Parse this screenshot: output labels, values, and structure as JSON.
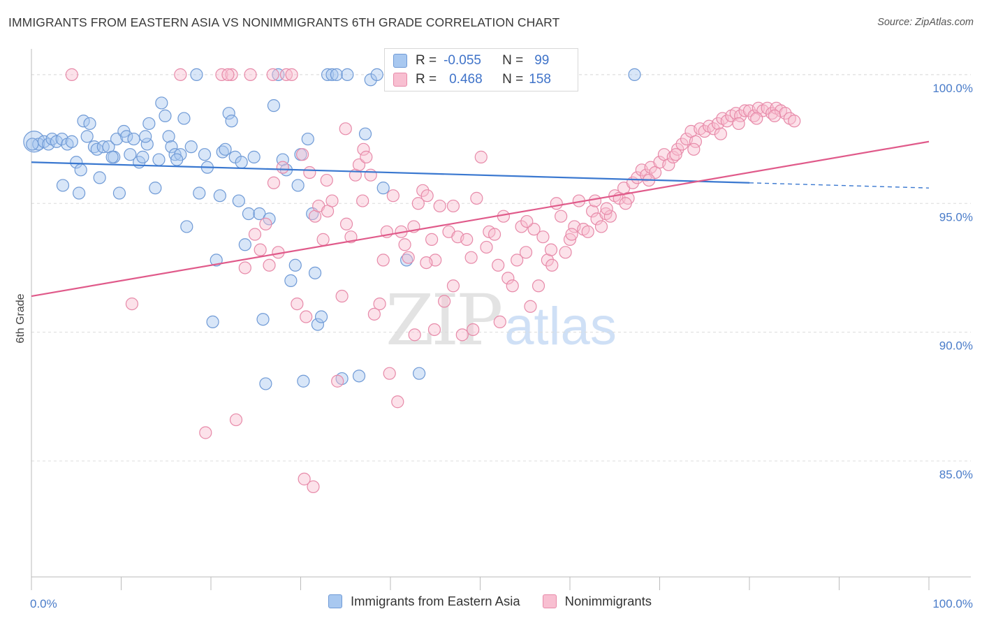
{
  "header": {
    "title": "IMMIGRANTS FROM EASTERN ASIA VS NONIMMIGRANTS 6TH GRADE CORRELATION CHART",
    "source": "Source: ZipAtlas.com"
  },
  "watermark": {
    "part1": "ZIP",
    "part2": "atlas"
  },
  "legend": {
    "rows": [
      {
        "r_label": "R =",
        "r_value": "-0.055",
        "n_label": "N =",
        "n_value": "99",
        "color": "#a8c8f0",
        "border": "#6f9ad6"
      },
      {
        "r_label": "R =",
        "r_value": "0.468",
        "n_label": "N =",
        "n_value": "158",
        "color": "#f8bfd1",
        "border": "#e78aa9"
      }
    ]
  },
  "bottom_legend": {
    "items": [
      {
        "label": "Immigrants from Eastern Asia",
        "color": "#a8c8f0",
        "border": "#6f9ad6"
      },
      {
        "label": "Nonimmigrants",
        "color": "#f8bfd1",
        "border": "#e78aa9"
      }
    ]
  },
  "chart_data": {
    "type": "scatter",
    "title": "IMMIGRANTS FROM EASTERN ASIA VS NONIMMIGRANTS 6TH GRADE CORRELATION CHART",
    "xlabel": "",
    "ylabel": "6th Grade",
    "xlim": [
      0,
      100
    ],
    "ylim": [
      80.5,
      101
    ],
    "x_tick_labels": [
      "0.0%",
      "100.0%"
    ],
    "y_ticks": [
      85,
      90,
      95,
      100
    ],
    "y_tick_labels": [
      "85.0%",
      "90.0%",
      "95.0%",
      "100.0%"
    ],
    "grid": true,
    "legend_position": "top-center",
    "colors": {
      "blue": "#5b8fd9",
      "blue_fill": "#a8c8f0",
      "pink": "#e8709a",
      "pink_fill": "#f8bfd1"
    },
    "series": [
      {
        "name": "Immigrants from Eastern Asia",
        "color": "#3a78d0",
        "trend": {
          "x0": 0,
          "y0": 96.6,
          "x1": 80,
          "y1": 95.8,
          "dash_to": 100,
          "dash_y": 95.6
        },
        "points": [
          [
            0.3,
            97.4
          ],
          [
            0.8,
            97.3
          ],
          [
            1.4,
            97.4
          ],
          [
            1.9,
            97.3
          ],
          [
            2.3,
            97.5
          ],
          [
            2.8,
            97.4
          ],
          [
            3.4,
            97.5
          ],
          [
            3.5,
            95.7
          ],
          [
            4.0,
            97.3
          ],
          [
            4.5,
            97.4
          ],
          [
            5.0,
            96.6
          ],
          [
            5.3,
            95.4
          ],
          [
            5.8,
            98.2
          ],
          [
            6.2,
            97.6
          ],
          [
            6.5,
            98.1
          ],
          [
            7.0,
            97.2
          ],
          [
            7.3,
            97.1
          ],
          [
            7.6,
            96.0
          ],
          [
            8.0,
            97.2
          ],
          [
            8.6,
            97.2
          ],
          [
            9.2,
            96.8
          ],
          [
            9.5,
            97.5
          ],
          [
            9.8,
            95.4
          ],
          [
            10.3,
            97.8
          ],
          [
            10.6,
            97.6
          ],
          [
            11.0,
            96.9
          ],
          [
            11.4,
            97.5
          ],
          [
            12.0,
            96.6
          ],
          [
            12.4,
            96.8
          ],
          [
            12.9,
            97.3
          ],
          [
            13.1,
            98.1
          ],
          [
            13.8,
            95.6
          ],
          [
            14.2,
            96.7
          ],
          [
            14.5,
            98.9
          ],
          [
            14.9,
            98.4
          ],
          [
            15.3,
            97.6
          ],
          [
            15.6,
            97.2
          ],
          [
            16.0,
            96.9
          ],
          [
            16.6,
            96.9
          ],
          [
            17.0,
            98.3
          ],
          [
            17.3,
            94.1
          ],
          [
            17.8,
            97.2
          ],
          [
            18.4,
            100.0
          ],
          [
            18.7,
            95.4
          ],
          [
            19.3,
            96.9
          ],
          [
            19.6,
            96.4
          ],
          [
            20.2,
            90.4
          ],
          [
            20.6,
            92.8
          ],
          [
            21.3,
            97.0
          ],
          [
            21.6,
            97.1
          ],
          [
            22.0,
            98.5
          ],
          [
            22.3,
            98.2
          ],
          [
            22.7,
            96.8
          ],
          [
            23.1,
            95.1
          ],
          [
            23.4,
            96.6
          ],
          [
            23.8,
            93.4
          ],
          [
            24.2,
            94.6
          ],
          [
            24.8,
            96.8
          ],
          [
            25.4,
            94.6
          ],
          [
            25.8,
            90.5
          ],
          [
            26.1,
            88.0
          ],
          [
            26.5,
            94.4
          ],
          [
            27.0,
            98.8
          ],
          [
            27.5,
            100.0
          ],
          [
            28.0,
            96.7
          ],
          [
            28.4,
            96.3
          ],
          [
            28.9,
            92.0
          ],
          [
            29.4,
            92.6
          ],
          [
            29.7,
            95.7
          ],
          [
            30.3,
            88.1
          ],
          [
            30.8,
            97.5
          ],
          [
            31.3,
            94.6
          ],
          [
            31.6,
            92.3
          ],
          [
            31.9,
            90.3
          ],
          [
            32.3,
            90.6
          ],
          [
            33.0,
            100.0
          ],
          [
            33.5,
            100.0
          ],
          [
            34.0,
            100.0
          ],
          [
            34.6,
            88.2
          ],
          [
            35.2,
            100.0
          ],
          [
            36.5,
            88.3
          ],
          [
            37.2,
            97.7
          ],
          [
            37.8,
            99.8
          ],
          [
            38.5,
            100.0
          ],
          [
            39.2,
            95.6
          ],
          [
            40.3,
            100.0
          ],
          [
            41.8,
            92.8
          ],
          [
            42.6,
            100.0
          ],
          [
            43.2,
            88.4
          ],
          [
            50.3,
            99.9
          ],
          [
            58.7,
            100.0
          ],
          [
            67.2,
            100.0
          ],
          [
            0.1,
            97.3
          ],
          [
            5.5,
            96.3
          ],
          [
            9.0,
            96.8
          ],
          [
            12.7,
            97.6
          ],
          [
            16.2,
            96.7
          ],
          [
            21.0,
            95.3
          ],
          [
            30.0,
            96.9
          ]
        ]
      },
      {
        "name": "Nonimmigrants",
        "color": "#e05a8a",
        "trend": {
          "x0": 0,
          "y0": 91.4,
          "x1": 100,
          "y1": 97.4
        },
        "points": [
          [
            11.2,
            91.1
          ],
          [
            19.4,
            86.1
          ],
          [
            21.2,
            100.0
          ],
          [
            22.3,
            100.0
          ],
          [
            22.8,
            86.6
          ],
          [
            23.8,
            92.5
          ],
          [
            24.4,
            100.0
          ],
          [
            24.9,
            93.8
          ],
          [
            25.5,
            93.2
          ],
          [
            26.1,
            94.2
          ],
          [
            26.5,
            92.6
          ],
          [
            27.0,
            95.8
          ],
          [
            27.5,
            93.1
          ],
          [
            28.0,
            96.4
          ],
          [
            28.4,
            100.0
          ],
          [
            29.0,
            100.0
          ],
          [
            29.6,
            91.1
          ],
          [
            30.2,
            96.9
          ],
          [
            30.6,
            90.6
          ],
          [
            31.0,
            96.2
          ],
          [
            31.4,
            84.0
          ],
          [
            31.6,
            94.5
          ],
          [
            32.0,
            94.9
          ],
          [
            32.5,
            93.6
          ],
          [
            33.0,
            94.7
          ],
          [
            33.5,
            95.1
          ],
          [
            34.1,
            88.1
          ],
          [
            34.6,
            91.4
          ],
          [
            35.1,
            94.2
          ],
          [
            35.6,
            93.7
          ],
          [
            36.1,
            96.1
          ],
          [
            36.5,
            96.5
          ],
          [
            37.0,
            97.1
          ],
          [
            37.3,
            96.8
          ],
          [
            37.8,
            96.1
          ],
          [
            38.2,
            90.7
          ],
          [
            38.8,
            91.1
          ],
          [
            39.2,
            92.8
          ],
          [
            39.6,
            93.9
          ],
          [
            40.3,
            95.3
          ],
          [
            40.8,
            87.3
          ],
          [
            41.2,
            93.9
          ],
          [
            41.6,
            93.4
          ],
          [
            42.0,
            92.9
          ],
          [
            42.6,
            94.1
          ],
          [
            43.1,
            95.0
          ],
          [
            43.6,
            95.5
          ],
          [
            44.1,
            95.3
          ],
          [
            44.6,
            93.6
          ],
          [
            45.0,
            92.8
          ],
          [
            45.5,
            94.9
          ],
          [
            46.0,
            91.2
          ],
          [
            46.5,
            93.9
          ],
          [
            47.0,
            91.8
          ],
          [
            47.5,
            93.7
          ],
          [
            48.0,
            89.9
          ],
          [
            48.5,
            93.6
          ],
          [
            49.0,
            92.9
          ],
          [
            49.6,
            95.2
          ],
          [
            50.1,
            96.8
          ],
          [
            50.7,
            93.3
          ],
          [
            51.0,
            93.9
          ],
          [
            51.6,
            93.8
          ],
          [
            52.0,
            92.6
          ],
          [
            52.6,
            94.5
          ],
          [
            53.1,
            92.1
          ],
          [
            53.6,
            91.8
          ],
          [
            54.1,
            92.8
          ],
          [
            54.6,
            94.1
          ],
          [
            55.1,
            93.1
          ],
          [
            55.6,
            91.0
          ],
          [
            56.0,
            94.0
          ],
          [
            56.5,
            91.8
          ],
          [
            57.0,
            93.7
          ],
          [
            57.5,
            92.8
          ],
          [
            58.0,
            92.6
          ],
          [
            58.5,
            95.0
          ],
          [
            59.0,
            94.5
          ],
          [
            59.5,
            93.1
          ],
          [
            60.0,
            93.6
          ],
          [
            60.5,
            94.1
          ],
          [
            61.0,
            95.1
          ],
          [
            61.5,
            94.0
          ],
          [
            62.0,
            93.9
          ],
          [
            62.5,
            94.7
          ],
          [
            63.0,
            94.4
          ],
          [
            63.5,
            94.1
          ],
          [
            64.0,
            94.6
          ],
          [
            64.5,
            94.5
          ],
          [
            65.0,
            95.3
          ],
          [
            65.5,
            95.2
          ],
          [
            66.0,
            95.6
          ],
          [
            66.5,
            95.2
          ],
          [
            67.0,
            95.8
          ],
          [
            67.5,
            96.0
          ],
          [
            68.0,
            96.3
          ],
          [
            68.5,
            96.1
          ],
          [
            69.0,
            96.4
          ],
          [
            69.5,
            96.2
          ],
          [
            70.0,
            96.6
          ],
          [
            70.5,
            96.9
          ],
          [
            71.0,
            96.5
          ],
          [
            71.5,
            96.8
          ],
          [
            72.0,
            97.1
          ],
          [
            72.5,
            97.3
          ],
          [
            73.0,
            97.5
          ],
          [
            73.5,
            97.8
          ],
          [
            74.0,
            97.4
          ],
          [
            74.5,
            97.9
          ],
          [
            75.0,
            97.8
          ],
          [
            75.5,
            98.0
          ],
          [
            76.0,
            97.9
          ],
          [
            76.5,
            98.1
          ],
          [
            77.0,
            98.3
          ],
          [
            77.5,
            98.2
          ],
          [
            78.0,
            98.4
          ],
          [
            78.5,
            98.5
          ],
          [
            79.0,
            98.4
          ],
          [
            79.5,
            98.6
          ],
          [
            80.0,
            98.6
          ],
          [
            80.5,
            98.4
          ],
          [
            81.0,
            98.7
          ],
          [
            81.5,
            98.6
          ],
          [
            82.0,
            98.7
          ],
          [
            82.5,
            98.5
          ],
          [
            83.0,
            98.7
          ],
          [
            83.5,
            98.6
          ],
          [
            84.0,
            98.5
          ],
          [
            84.5,
            98.3
          ],
          [
            85.0,
            98.2
          ],
          [
            4.5,
            100.0
          ],
          [
            16.6,
            100.0
          ],
          [
            21.9,
            100.0
          ],
          [
            26.9,
            100.0
          ],
          [
            35.0,
            97.9
          ],
          [
            36.9,
            95.1
          ],
          [
            42.7,
            89.9
          ],
          [
            44.9,
            90.1
          ],
          [
            49.2,
            90.1
          ],
          [
            52.2,
            90.4
          ],
          [
            39.9,
            88.4
          ],
          [
            30.4,
            84.3
          ],
          [
            32.9,
            95.9
          ],
          [
            44.0,
            92.7
          ],
          [
            47.0,
            94.9
          ],
          [
            55.2,
            94.3
          ],
          [
            57.9,
            93.2
          ],
          [
            60.2,
            93.8
          ],
          [
            62.8,
            95.1
          ],
          [
            64.1,
            94.8
          ],
          [
            66.2,
            95.0
          ],
          [
            68.8,
            95.9
          ],
          [
            71.8,
            96.9
          ],
          [
            73.8,
            97.1
          ],
          [
            76.8,
            97.7
          ],
          [
            78.8,
            98.1
          ],
          [
            80.8,
            98.3
          ],
          [
            82.8,
            98.4
          ]
        ]
      }
    ]
  }
}
